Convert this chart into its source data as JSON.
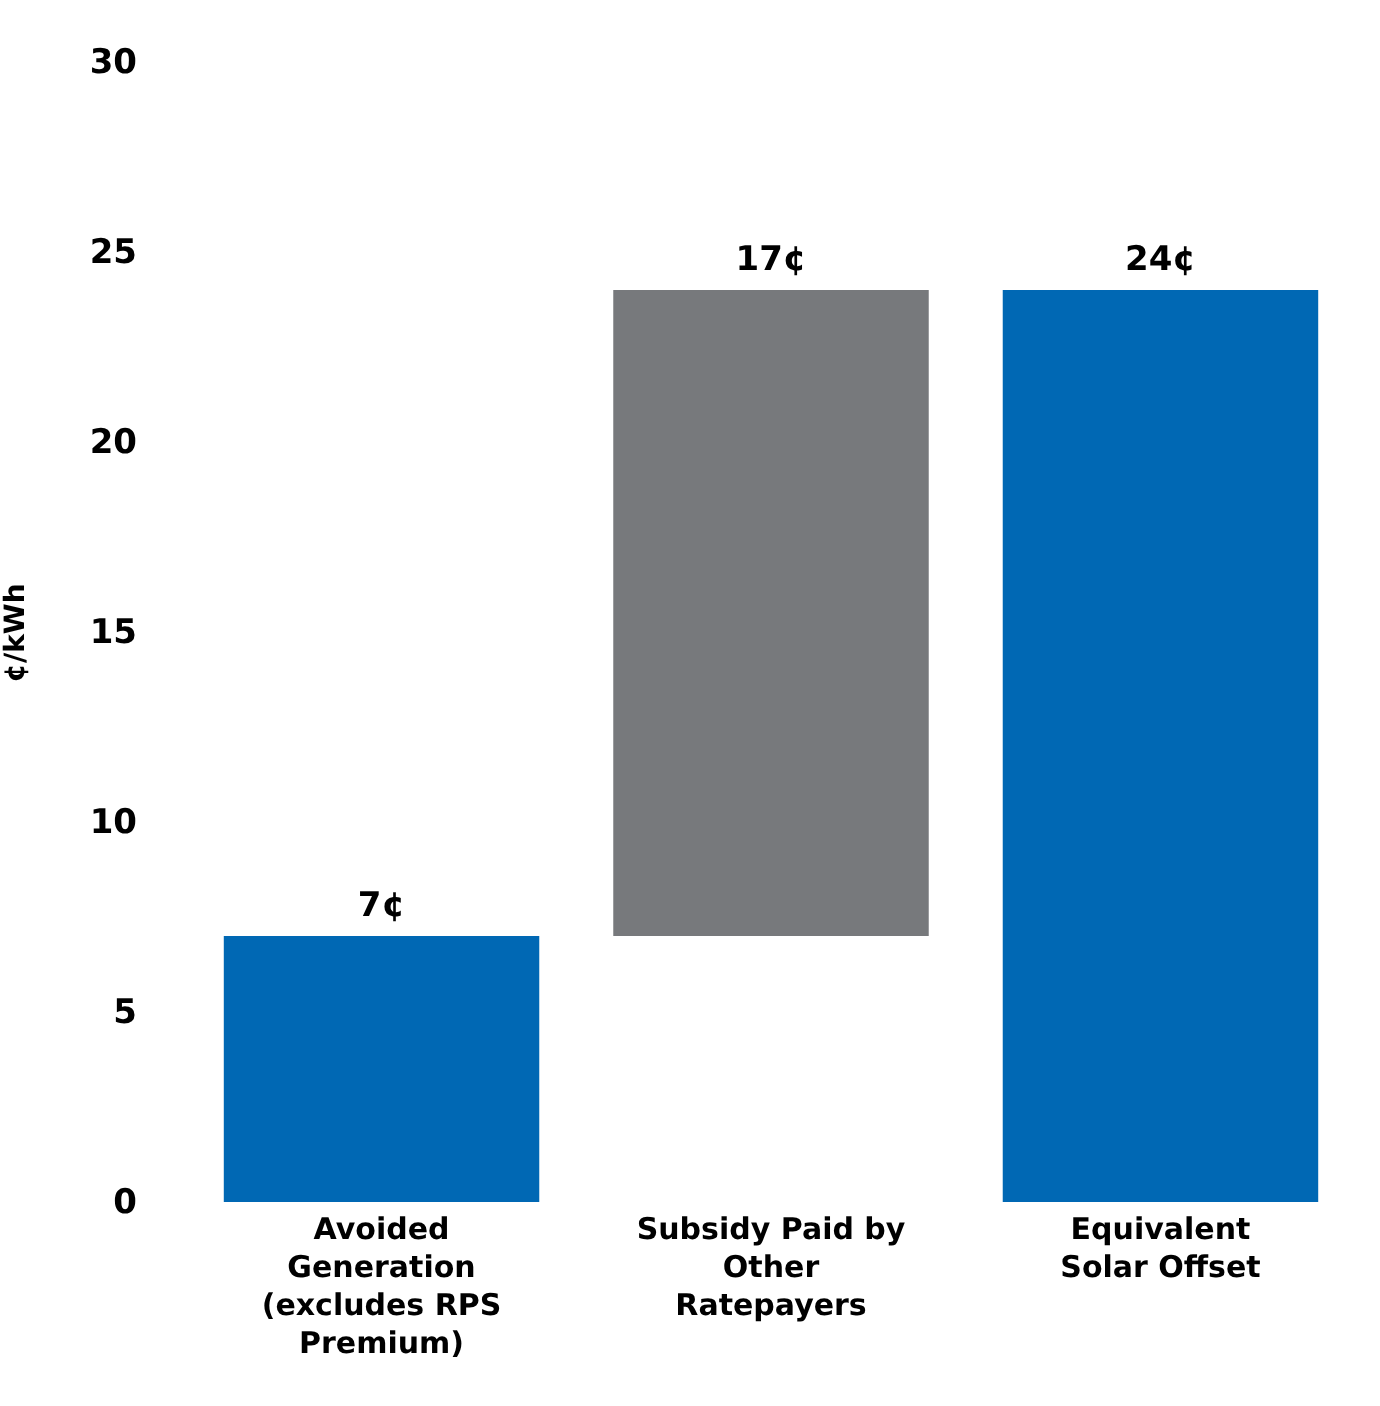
{
  "chart_data": {
    "type": "bar",
    "ylabel": "¢/kWh",
    "categories": [
      "Avoided Generation (excludes RPS Premium)",
      "Subsidy Paid by Other Ratepayers",
      "Equivalent Solar Offset"
    ],
    "values": [
      7,
      17,
      24
    ],
    "base": [
      0,
      7,
      0
    ],
    "colors": [
      "#0068b4",
      "#77797c",
      "#0068b4"
    ],
    "value_labels": [
      "7¢",
      "17¢",
      "24¢"
    ],
    "ylim": [
      0,
      30
    ],
    "yticks": [
      0,
      5,
      10,
      15,
      20,
      25,
      30
    ],
    "grid": false
  }
}
